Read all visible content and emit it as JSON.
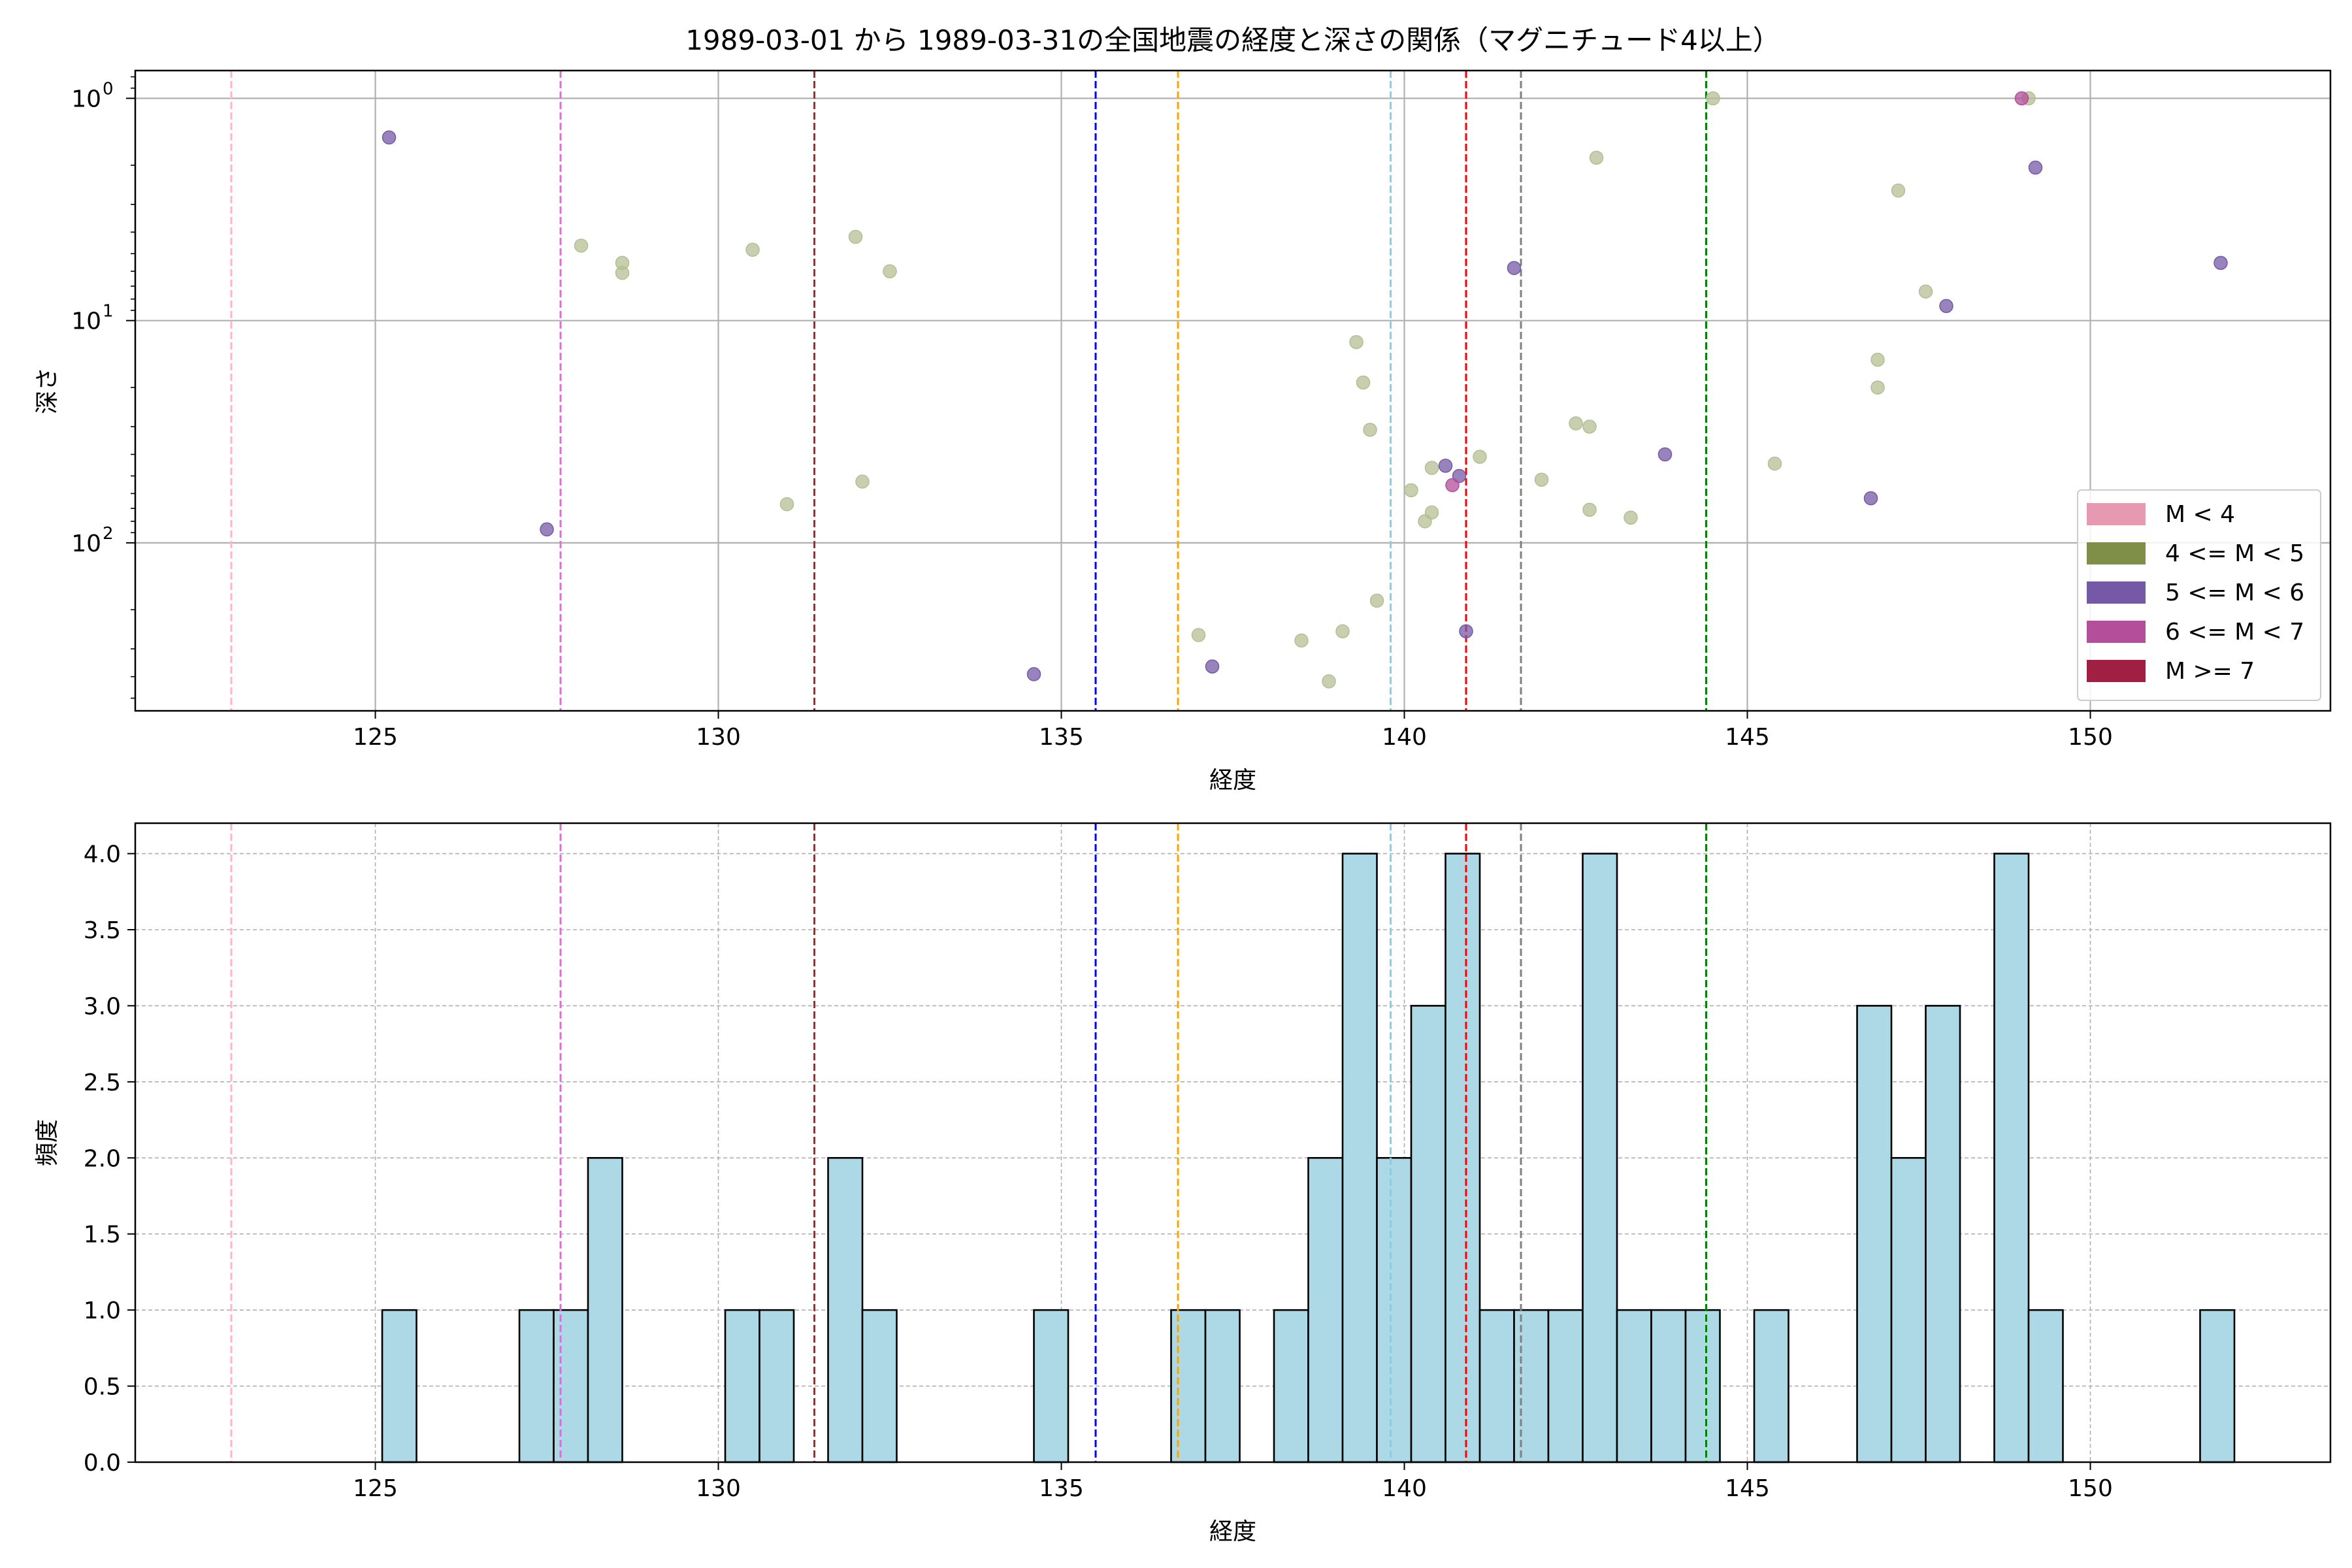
{
  "chart_data": [
    {
      "type": "scatter",
      "title": "1989-03-01 から 1989-03-31の全国地震の経度と深さの関係（マグニチュード4以上）",
      "xlabel": "経度",
      "ylabel": "深さ",
      "xlim": [
        121.5,
        153.5
      ],
      "ylim": [
        570,
        0.75
      ],
      "yscale": "log",
      "y_inverted": true,
      "grid": true,
      "xticks": [
        125,
        130,
        135,
        140,
        145,
        150
      ],
      "yticks": [
        {
          "value": 1,
          "base": "10",
          "exp": "0"
        },
        {
          "value": 10,
          "base": "10",
          "exp": "1"
        },
        {
          "value": 100,
          "base": "10",
          "exp": "2"
        }
      ],
      "legend_position": "lower-right",
      "legend": [
        {
          "label": "M < 4",
          "color": "#e699b0"
        },
        {
          "label": "4 <= M < 5",
          "color": "#7f8f47"
        },
        {
          "label": "5 <= M < 6",
          "color": "#7559a6"
        },
        {
          "label": "6 <= M < 7",
          "color": "#b34e9a"
        },
        {
          "label": "M >= 7",
          "color": "#a11f42"
        }
      ],
      "vlines": [
        {
          "x": 122.9,
          "color": "#ffb6c8"
        },
        {
          "x": 127.7,
          "color": "#da70d6"
        },
        {
          "x": 131.4,
          "color": "#a52a2a"
        },
        {
          "x": 135.5,
          "color": "#0000ff"
        },
        {
          "x": 136.7,
          "color": "#ffa500"
        },
        {
          "x": 139.8,
          "color": "#87ceeb"
        },
        {
          "x": 140.9,
          "color": "#ff0000"
        },
        {
          "x": 141.7,
          "color": "#808080"
        },
        {
          "x": 144.4,
          "color": "#008000"
        }
      ],
      "series": [
        {
          "group": "4 <= M < 5",
          "color": "#b4bf94",
          "points": [
            [
              128.0,
              4.6
            ],
            [
              128.6,
              5.5
            ],
            [
              128.6,
              6.1
            ],
            [
              130.5,
              4.8
            ],
            [
              132.0,
              4.2
            ],
            [
              132.5,
              6.0
            ],
            [
              131.0,
              67
            ],
            [
              132.1,
              53
            ],
            [
              137.0,
              260
            ],
            [
              138.5,
              275
            ],
            [
              138.9,
              420
            ],
            [
              139.1,
              250
            ],
            [
              139.3,
              12.5
            ],
            [
              139.4,
              19
            ],
            [
              139.5,
              31
            ],
            [
              139.6,
              182
            ],
            [
              140.1,
              58
            ],
            [
              140.3,
              80
            ],
            [
              140.4,
              73
            ],
            [
              140.4,
              46
            ],
            [
              141.1,
              41
            ],
            [
              142.0,
              52
            ],
            [
              142.5,
              29
            ],
            [
              142.7,
              30
            ],
            [
              142.7,
              71
            ],
            [
              142.8,
              1.85
            ],
            [
              143.3,
              77
            ],
            [
              144.5,
              1.0
            ],
            [
              145.4,
              44
            ],
            [
              146.9,
              15
            ],
            [
              146.9,
              20
            ],
            [
              147.2,
              2.6
            ],
            [
              147.6,
              7.4
            ],
            [
              149.1,
              1.0
            ]
          ]
        },
        {
          "group": "5 <= M < 6",
          "color": "#7559a6",
          "points": [
            [
              125.2,
              1.5
            ],
            [
              127.5,
              87
            ],
            [
              134.6,
              390
            ],
            [
              137.2,
              360
            ],
            [
              140.6,
              45
            ],
            [
              140.8,
              50
            ],
            [
              140.9,
              250
            ],
            [
              141.6,
              5.8
            ],
            [
              143.8,
              40
            ],
            [
              146.8,
              63
            ],
            [
              147.9,
              8.6
            ],
            [
              149.2,
              2.05
            ],
            [
              151.9,
              5.5
            ]
          ]
        },
        {
          "group": "6 <= M < 7",
          "color": "#b34e9a",
          "points": [
            [
              140.7,
              55
            ],
            [
              149.0,
              1.0
            ]
          ]
        }
      ]
    },
    {
      "type": "bar",
      "subtype": "histogram",
      "xlabel": "経度",
      "ylabel": "頻度",
      "xlim": [
        121.5,
        153.5
      ],
      "ylim": [
        0,
        4.2
      ],
      "grid": true,
      "grid_style": "dashed",
      "bar_color": "#add8e6",
      "edge_color": "#000000",
      "bin_width": 0.5,
      "xticks": [
        125,
        130,
        135,
        140,
        145,
        150
      ],
      "yticks": [
        "0.0",
        "0.5",
        "1.0",
        "1.5",
        "2.0",
        "2.5",
        "3.0",
        "3.5",
        "4.0"
      ],
      "vlines": [
        {
          "x": 122.9,
          "color": "#ffb6c8"
        },
        {
          "x": 127.7,
          "color": "#da70d6"
        },
        {
          "x": 131.4,
          "color": "#a52a2a"
        },
        {
          "x": 135.5,
          "color": "#0000ff"
        },
        {
          "x": 136.7,
          "color": "#ffa500"
        },
        {
          "x": 139.8,
          "color": "#87ceeb"
        },
        {
          "x": 140.9,
          "color": "#ff0000"
        },
        {
          "x": 141.7,
          "color": "#808080"
        },
        {
          "x": 144.4,
          "color": "#008000"
        }
      ],
      "bins": [
        [
          125.1,
          1
        ],
        [
          127.1,
          1
        ],
        [
          127.6,
          1
        ],
        [
          128.1,
          2
        ],
        [
          130.1,
          1
        ],
        [
          130.6,
          1
        ],
        [
          131.6,
          2
        ],
        [
          132.1,
          1
        ],
        [
          134.6,
          1
        ],
        [
          136.6,
          1
        ],
        [
          137.1,
          1
        ],
        [
          138.1,
          1
        ],
        [
          138.6,
          2
        ],
        [
          139.1,
          4
        ],
        [
          139.6,
          2
        ],
        [
          140.1,
          3
        ],
        [
          140.6,
          4
        ],
        [
          141.1,
          1
        ],
        [
          141.6,
          1
        ],
        [
          142.1,
          1
        ],
        [
          142.6,
          4
        ],
        [
          143.1,
          1
        ],
        [
          143.6,
          1
        ],
        [
          144.1,
          1
        ],
        [
          145.1,
          1
        ],
        [
          146.6,
          3
        ],
        [
          147.1,
          2
        ],
        [
          147.6,
          3
        ],
        [
          148.6,
          4
        ],
        [
          149.1,
          1
        ],
        [
          151.6,
          1
        ]
      ]
    }
  ]
}
